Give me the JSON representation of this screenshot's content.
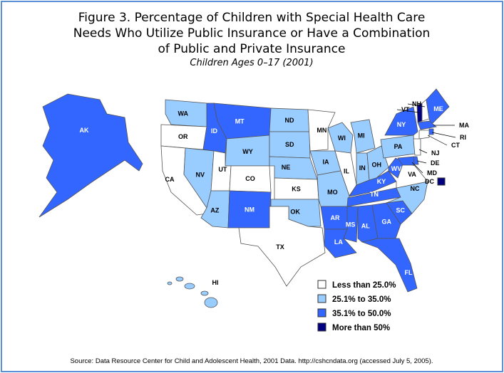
{
  "header": {
    "title": "Figure 3. Percentage of Children with Special Health Care Needs Who Utilize Public Insurance or Have a Combination of Public and Private Insurance",
    "title_lines": [
      "Figure 3. Percentage of Children with Special Health Care",
      "Needs Who Utilize Public Insurance or Have a Combination",
      "of Public and Private Insurance"
    ],
    "subtitle": "Children Ages 0–17 (2001)"
  },
  "legend": [
    {
      "label": "Less than 25.0%",
      "color": "#ffffff"
    },
    {
      "label": "25.1%  to 35.0%",
      "color": "#99ccff"
    },
    {
      "label": "35.1% to 50.0%",
      "color": "#3366ff"
    },
    {
      "label": "More than 50%",
      "color": "#000080"
    }
  ],
  "states": [
    {
      "label": "AK",
      "color": "#3366ff"
    },
    {
      "label": "HI",
      "color": "#99ccff"
    },
    {
      "label": "WA",
      "color": "#99ccff"
    },
    {
      "label": "OR",
      "color": "#ffffff"
    },
    {
      "label": "CA",
      "color": "#ffffff"
    },
    {
      "label": "NV",
      "color": "#99ccff"
    },
    {
      "label": "ID",
      "color": "#3366ff"
    },
    {
      "label": "MT",
      "color": "#3366ff"
    },
    {
      "label": "WY",
      "color": "#99ccff"
    },
    {
      "label": "UT",
      "color": "#ffffff"
    },
    {
      "label": "AZ",
      "color": "#99ccff"
    },
    {
      "label": "CO",
      "color": "#ffffff"
    },
    {
      "label": "NM",
      "color": "#3366ff"
    },
    {
      "label": "ND",
      "color": "#99ccff"
    },
    {
      "label": "SD",
      "color": "#99ccff"
    },
    {
      "label": "NE",
      "color": "#99ccff"
    },
    {
      "label": "KS",
      "color": "#ffffff"
    },
    {
      "label": "OK",
      "color": "#99ccff"
    },
    {
      "label": "TX",
      "color": "#ffffff"
    },
    {
      "label": "MN",
      "color": "#ffffff"
    },
    {
      "label": "IA",
      "color": "#99ccff"
    },
    {
      "label": "MO",
      "color": "#99ccff"
    },
    {
      "label": "AR",
      "color": "#3366ff"
    },
    {
      "label": "LA",
      "color": "#3366ff"
    },
    {
      "label": "WI",
      "color": "#99ccff"
    },
    {
      "label": "IL",
      "color": "#ffffff"
    },
    {
      "label": "MI",
      "color": "#99ccff"
    },
    {
      "label": "IN",
      "color": "#99ccff"
    },
    {
      "label": "OH",
      "color": "#99ccff"
    },
    {
      "label": "KY",
      "color": "#3366ff"
    },
    {
      "label": "TN",
      "color": "#3366ff"
    },
    {
      "label": "MS",
      "color": "#3366ff"
    },
    {
      "label": "AL",
      "color": "#3366ff"
    },
    {
      "label": "GA",
      "color": "#3366ff"
    },
    {
      "label": "FL",
      "color": "#3366ff"
    },
    {
      "label": "SC",
      "color": "#3366ff"
    },
    {
      "label": "NC",
      "color": "#99ccff"
    },
    {
      "label": "VA",
      "color": "#ffffff"
    },
    {
      "label": "WV",
      "color": "#3366ff"
    },
    {
      "label": "PA",
      "color": "#99ccff"
    },
    {
      "label": "NY",
      "color": "#3366ff"
    },
    {
      "label": "VT",
      "color": "#000080"
    },
    {
      "label": "NH",
      "color": "#ffffff"
    },
    {
      "label": "ME",
      "color": "#3366ff"
    },
    {
      "label": "MA",
      "color": "#3366ff"
    },
    {
      "label": "RI",
      "color": "#3366ff"
    },
    {
      "label": "CT",
      "color": "#ffffff"
    },
    {
      "label": "NJ",
      "color": "#ffffff"
    },
    {
      "label": "DE",
      "color": "#3366ff"
    },
    {
      "label": "MD",
      "color": "#3366ff"
    },
    {
      "label": "DC",
      "color": "#000080"
    }
  ],
  "source": "Source: Data Resource Center for Child and Adolescent Health, 2001 Data. http://cshcndata.org (accessed July 5, 2005)."
}
